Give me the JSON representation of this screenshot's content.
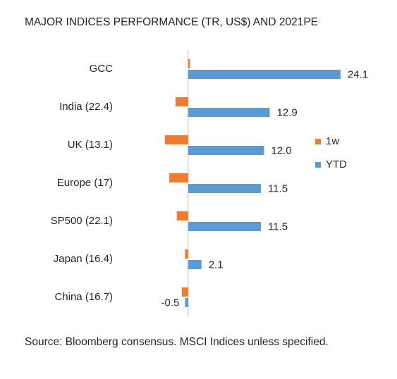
{
  "chart_data": {
    "type": "hbar",
    "title": "MAJOR INDICES PERFORMANCE (TR, US$) AND 2021PE",
    "categories": [
      "GCC",
      "India (22.4)",
      "UK (13.1)",
      "Europe (17)",
      "SP500 (22.1)",
      "Japan (16.4)",
      "China (16.7)"
    ],
    "series": [
      {
        "name": "1w",
        "color": "#ed7d31",
        "values": [
          0.3,
          -2.0,
          -3.7,
          -3.0,
          -1.8,
          -0.5,
          -1.0
        ]
      },
      {
        "name": "YTD",
        "color": "#5b9bd5",
        "values": [
          24.1,
          12.9,
          12.0,
          11.5,
          11.5,
          2.1,
          -0.5
        ],
        "value_labels": [
          "24.1",
          "12.9",
          "12.0",
          "11.5",
          "11.5",
          "2.1",
          "-0.5"
        ]
      }
    ],
    "xlim": [
      -4,
      25
    ],
    "legend": "right",
    "source": "Source: Bloomberg consensus. MSCI Indices unless specified."
  }
}
